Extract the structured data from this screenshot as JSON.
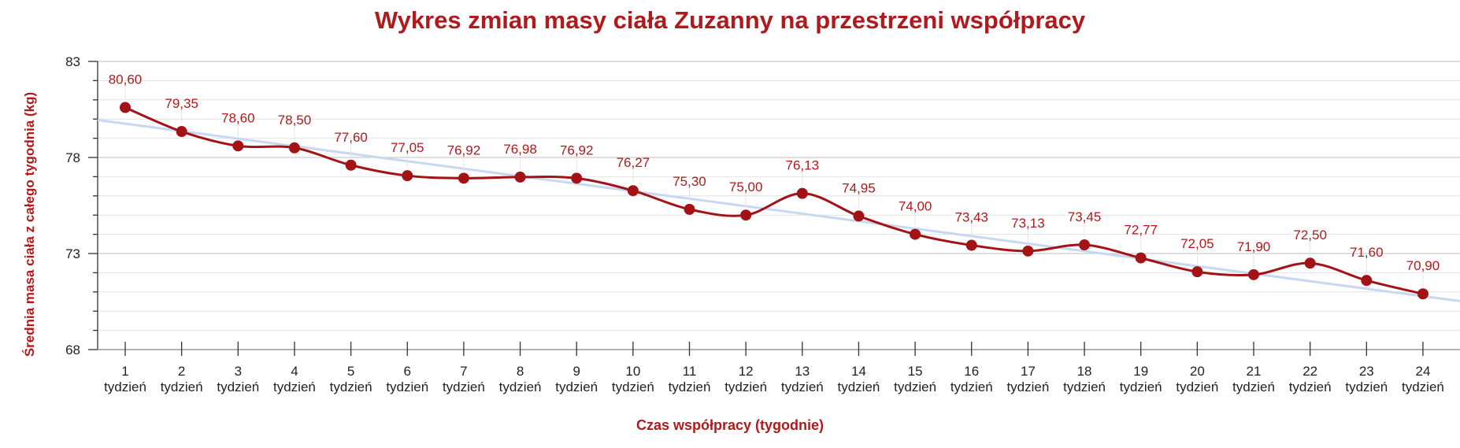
{
  "chart_data": {
    "type": "line",
    "title": "Wykres zmian masy ciała Zuzanny na przestrzeni współpracy",
    "xlabel": "Czas współpracy (tygodnie)",
    "ylabel": "Średnia masa ciała z całego tygodnia (kg)",
    "ylim": [
      68,
      83
    ],
    "yticks": [
      "68",
      "73",
      "78",
      "83"
    ],
    "categories": [
      {
        "num": "1",
        "unit": "tydzień"
      },
      {
        "num": "2",
        "unit": "tydzień"
      },
      {
        "num": "3",
        "unit": "tydzień"
      },
      {
        "num": "4",
        "unit": "tydzień"
      },
      {
        "num": "5",
        "unit": "tydzień"
      },
      {
        "num": "6",
        "unit": "tydzień"
      },
      {
        "num": "7",
        "unit": "tydzień"
      },
      {
        "num": "8",
        "unit": "tydzień"
      },
      {
        "num": "9",
        "unit": "tydzień"
      },
      {
        "num": "10",
        "unit": "tydzień"
      },
      {
        "num": "11",
        "unit": "tydzień"
      },
      {
        "num": "12",
        "unit": "tydzień"
      },
      {
        "num": "13",
        "unit": "tydzień"
      },
      {
        "num": "14",
        "unit": "tydzień"
      },
      {
        "num": "15",
        "unit": "tydzień"
      },
      {
        "num": "16",
        "unit": "tydzień"
      },
      {
        "num": "17",
        "unit": "tydzień"
      },
      {
        "num": "18",
        "unit": "tydzień"
      },
      {
        "num": "19",
        "unit": "tydzień"
      },
      {
        "num": "20",
        "unit": "tydzień"
      },
      {
        "num": "21",
        "unit": "tydzień"
      },
      {
        "num": "22",
        "unit": "tydzień"
      },
      {
        "num": "23",
        "unit": "tydzień"
      },
      {
        "num": "24",
        "unit": "tydzień"
      }
    ],
    "values": [
      80.6,
      79.35,
      78.6,
      78.5,
      77.6,
      77.05,
      76.92,
      76.98,
      76.92,
      76.27,
      75.3,
      75.0,
      76.13,
      74.95,
      74.0,
      73.43,
      73.13,
      73.45,
      72.77,
      72.05,
      71.9,
      72.5,
      71.6,
      70.9
    ],
    "data_labels": [
      "80,60",
      "79,35",
      "78,60",
      "78,50",
      "77,60",
      "77,05",
      "76,92",
      "76,98",
      "76,92",
      "76,27",
      "75,30",
      "75,00",
      "76,13",
      "74,95",
      "74,00",
      "73,43",
      "73,13",
      "73,45",
      "72,77",
      "72,05",
      "71,90",
      "72,50",
      "71,60",
      "70,90"
    ],
    "trendline": {
      "start": 79.76,
      "end": 70.78,
      "color": "#c8d8f2"
    },
    "grid": true,
    "colors": {
      "line": "#a31316",
      "marker": "#a31316",
      "label": "#b01a1c",
      "title": "#b01a1c",
      "grid": "#e2e2e2"
    }
  }
}
